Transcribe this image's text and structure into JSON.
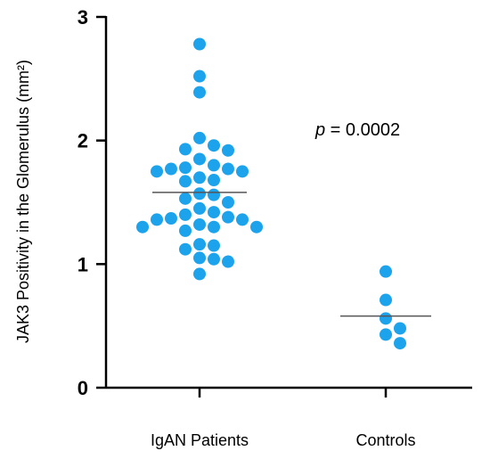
{
  "chart_data": {
    "type": "scatter",
    "title": "",
    "xlabel": "",
    "ylabel": "JAK3 Positivity in the Glomerulus (mm²)",
    "ylim": [
      0,
      3
    ],
    "yticks": [
      "0",
      "1",
      "2",
      "3"
    ],
    "grid": false,
    "categories": [
      "IgAN Patients",
      "Controls"
    ],
    "series": [
      {
        "category": "IgAN Patients",
        "values": [
          2.78,
          2.52,
          2.39,
          2.02,
          1.96,
          1.93,
          1.92,
          1.85,
          1.8,
          1.78,
          1.77,
          1.77,
          1.75,
          1.75,
          1.7,
          1.68,
          1.67,
          1.57,
          1.56,
          1.53,
          1.5,
          1.45,
          1.42,
          1.4,
          1.38,
          1.37,
          1.36,
          1.36,
          1.32,
          1.3,
          1.3,
          1.3,
          1.27,
          1.16,
          1.15,
          1.12,
          1.05,
          1.04,
          1.02,
          0.92
        ],
        "mean": 1.58,
        "color": "#1ca3ec"
      },
      {
        "category": "Controls",
        "values": [
          0.94,
          0.71,
          0.56,
          0.48,
          0.43,
          0.36
        ],
        "mean": 0.58,
        "color": "#1ca3ec"
      }
    ],
    "annotation": {
      "italic": "p",
      "text": " = 0.0002"
    }
  }
}
